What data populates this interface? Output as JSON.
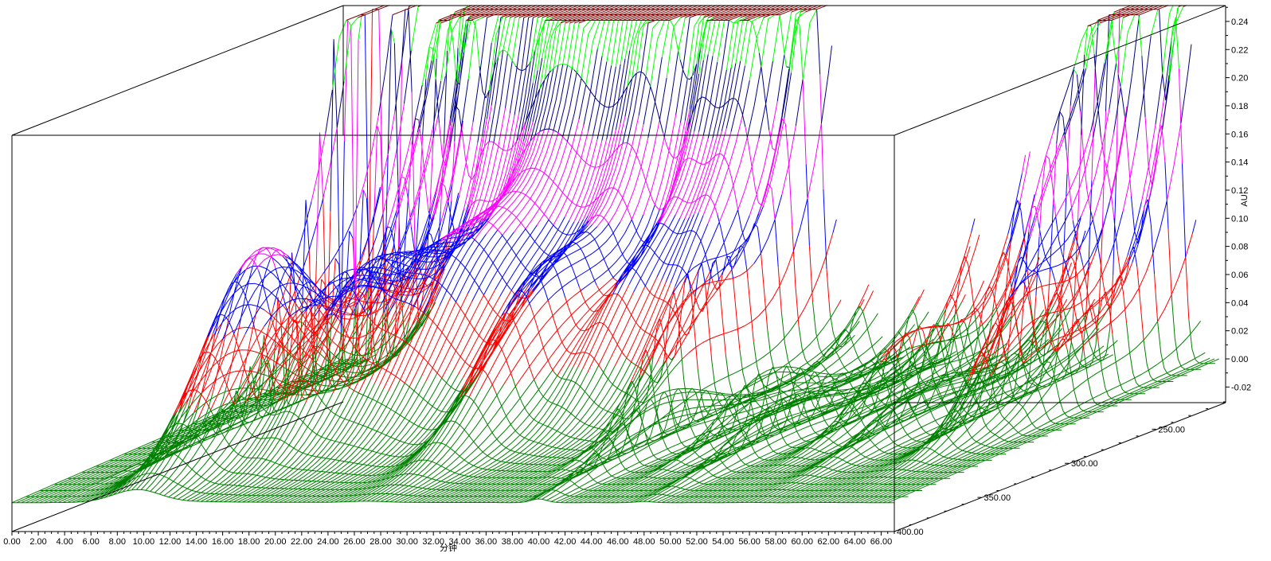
{
  "chart_data": {
    "type": "surface",
    "title": "",
    "x_axis": {
      "label": "分钟",
      "range": [
        0,
        67
      ],
      "major_step": 2,
      "minor_step": 0.5,
      "tick_labels": [
        "0.00",
        "2.00",
        "4.00",
        "6.00",
        "8.00",
        "10.00",
        "12.00",
        "14.00",
        "16.00",
        "18.00",
        "20.00",
        "22.00",
        "24.00",
        "26.00",
        "28.00",
        "30.00",
        "32.00",
        "34.00",
        "36.00",
        "38.00",
        "40.00",
        "42.00",
        "44.00",
        "46.00",
        "48.00",
        "50.00",
        "52.00",
        "54.00",
        "56.00",
        "58.00",
        "60.00",
        "62.00",
        "64.00",
        "66.00"
      ]
    },
    "y_axis": {
      "label": "AU",
      "range": [
        -0.02,
        0.25
      ],
      "major_step": 0.02,
      "minor_step": 0.01,
      "tick_labels": [
        "-0.02",
        "0.00",
        "0.02",
        "0.04",
        "0.06",
        "0.08",
        "0.10",
        "0.12",
        "0.14",
        "0.16",
        "0.18",
        "0.20",
        "0.22",
        "0.24"
      ]
    },
    "z_axis": {
      "label": "",
      "range": [
        400,
        210
      ],
      "minor_step": 10,
      "tick_labels": [
        "250.00",
        "300.00",
        "350.00",
        "400.00"
      ]
    },
    "grid": false,
    "color_bands": [
      {
        "max": 0.04,
        "color": "#008000"
      },
      {
        "max": 0.087,
        "color": "#ff0000"
      },
      {
        "max": 0.124,
        "color": "#0000ff"
      },
      {
        "max": 0.18,
        "color": "#ff00ff"
      },
      {
        "max": 0.22,
        "color": "#000080"
      },
      {
        "max": 0.251,
        "color": "#00ff00"
      },
      {
        "max": 99,
        "color": "#800000"
      }
    ],
    "peaks": [
      {
        "rt": 3.3,
        "w": 0.25,
        "uv": 0.9,
        "lmax": 260,
        "band": 0.03,
        "bw": 20
      },
      {
        "rt": 5.6,
        "w": 0.35,
        "uv": 0.45,
        "lmax": 270,
        "band": 0.05,
        "bw": 25
      },
      {
        "rt": 9.5,
        "w": 1.8,
        "uv": 0.1,
        "lmax": 330,
        "band": 0.14,
        "bw": 30
      },
      {
        "rt": 10.6,
        "w": 0.7,
        "uv": 0.6,
        "lmax": 250,
        "band": 0.06,
        "bw": 20
      },
      {
        "rt": 12.5,
        "w": 0.6,
        "uv": 0.5,
        "lmax": 300,
        "band": 0.04,
        "bw": 25
      },
      {
        "rt": 14.5,
        "w": 1.2,
        "uv": 0.3,
        "lmax": 320,
        "band": 0.05,
        "bw": 25
      },
      {
        "rt": 16,
        "w": 2.5,
        "uv": 0.2,
        "lmax": 300,
        "band": 0.07,
        "bw": 30
      },
      {
        "rt": 20,
        "w": 2.5,
        "uv": 0.3,
        "lmax": 290,
        "band": 0.06,
        "bw": 30
      },
      {
        "rt": 24,
        "w": 5,
        "uv": 0.5,
        "lmax": 270,
        "band": 0.05,
        "bw": 30
      },
      {
        "rt": 27,
        "w": 1.5,
        "uv": 0.3,
        "lmax": 310,
        "band": 0.08,
        "bw": 30
      },
      {
        "rt": 31,
        "w": 1.2,
        "uv": 0.4,
        "lmax": 280,
        "band": 0.05,
        "bw": 25
      },
      {
        "rt": 34,
        "w": 1.5,
        "uv": 0.5,
        "lmax": 260,
        "band": 0.06,
        "bw": 25
      },
      {
        "rt": 36.5,
        "w": 0.5,
        "uv": 0.3,
        "lmax": 290,
        "band": 0.08,
        "bw": 25
      },
      {
        "rt": 40,
        "w": 0.6,
        "uv": 0.05,
        "lmax": 330,
        "band": 0.04,
        "bw": 30
      },
      {
        "rt": 44,
        "w": 0.5,
        "uv": 0.05,
        "lmax": 300,
        "band": 0.04,
        "bw": 25
      },
      {
        "rt": 48,
        "w": 0.6,
        "uv": 0.1,
        "lmax": 320,
        "band": 0.03,
        "bw": 30
      },
      {
        "rt": 52,
        "w": 0.7,
        "uv": 0.15,
        "lmax": 280,
        "band": 0.05,
        "bw": 25
      },
      {
        "rt": 56,
        "w": 0.8,
        "uv": 0.1,
        "lmax": 300,
        "band": 0.03,
        "bw": 30
      },
      {
        "rt": 60.5,
        "w": 0.6,
        "uv": 0.7,
        "lmax": 260,
        "band": 0.1,
        "bw": 20
      },
      {
        "rt": 62,
        "w": 0.8,
        "uv": 0.5,
        "lmax": 290,
        "band": 0.08,
        "bw": 25
      },
      {
        "rt": 64,
        "w": 0.5,
        "uv": 0.3,
        "lmax": 270,
        "band": 0.04,
        "bw": 20
      }
    ]
  }
}
